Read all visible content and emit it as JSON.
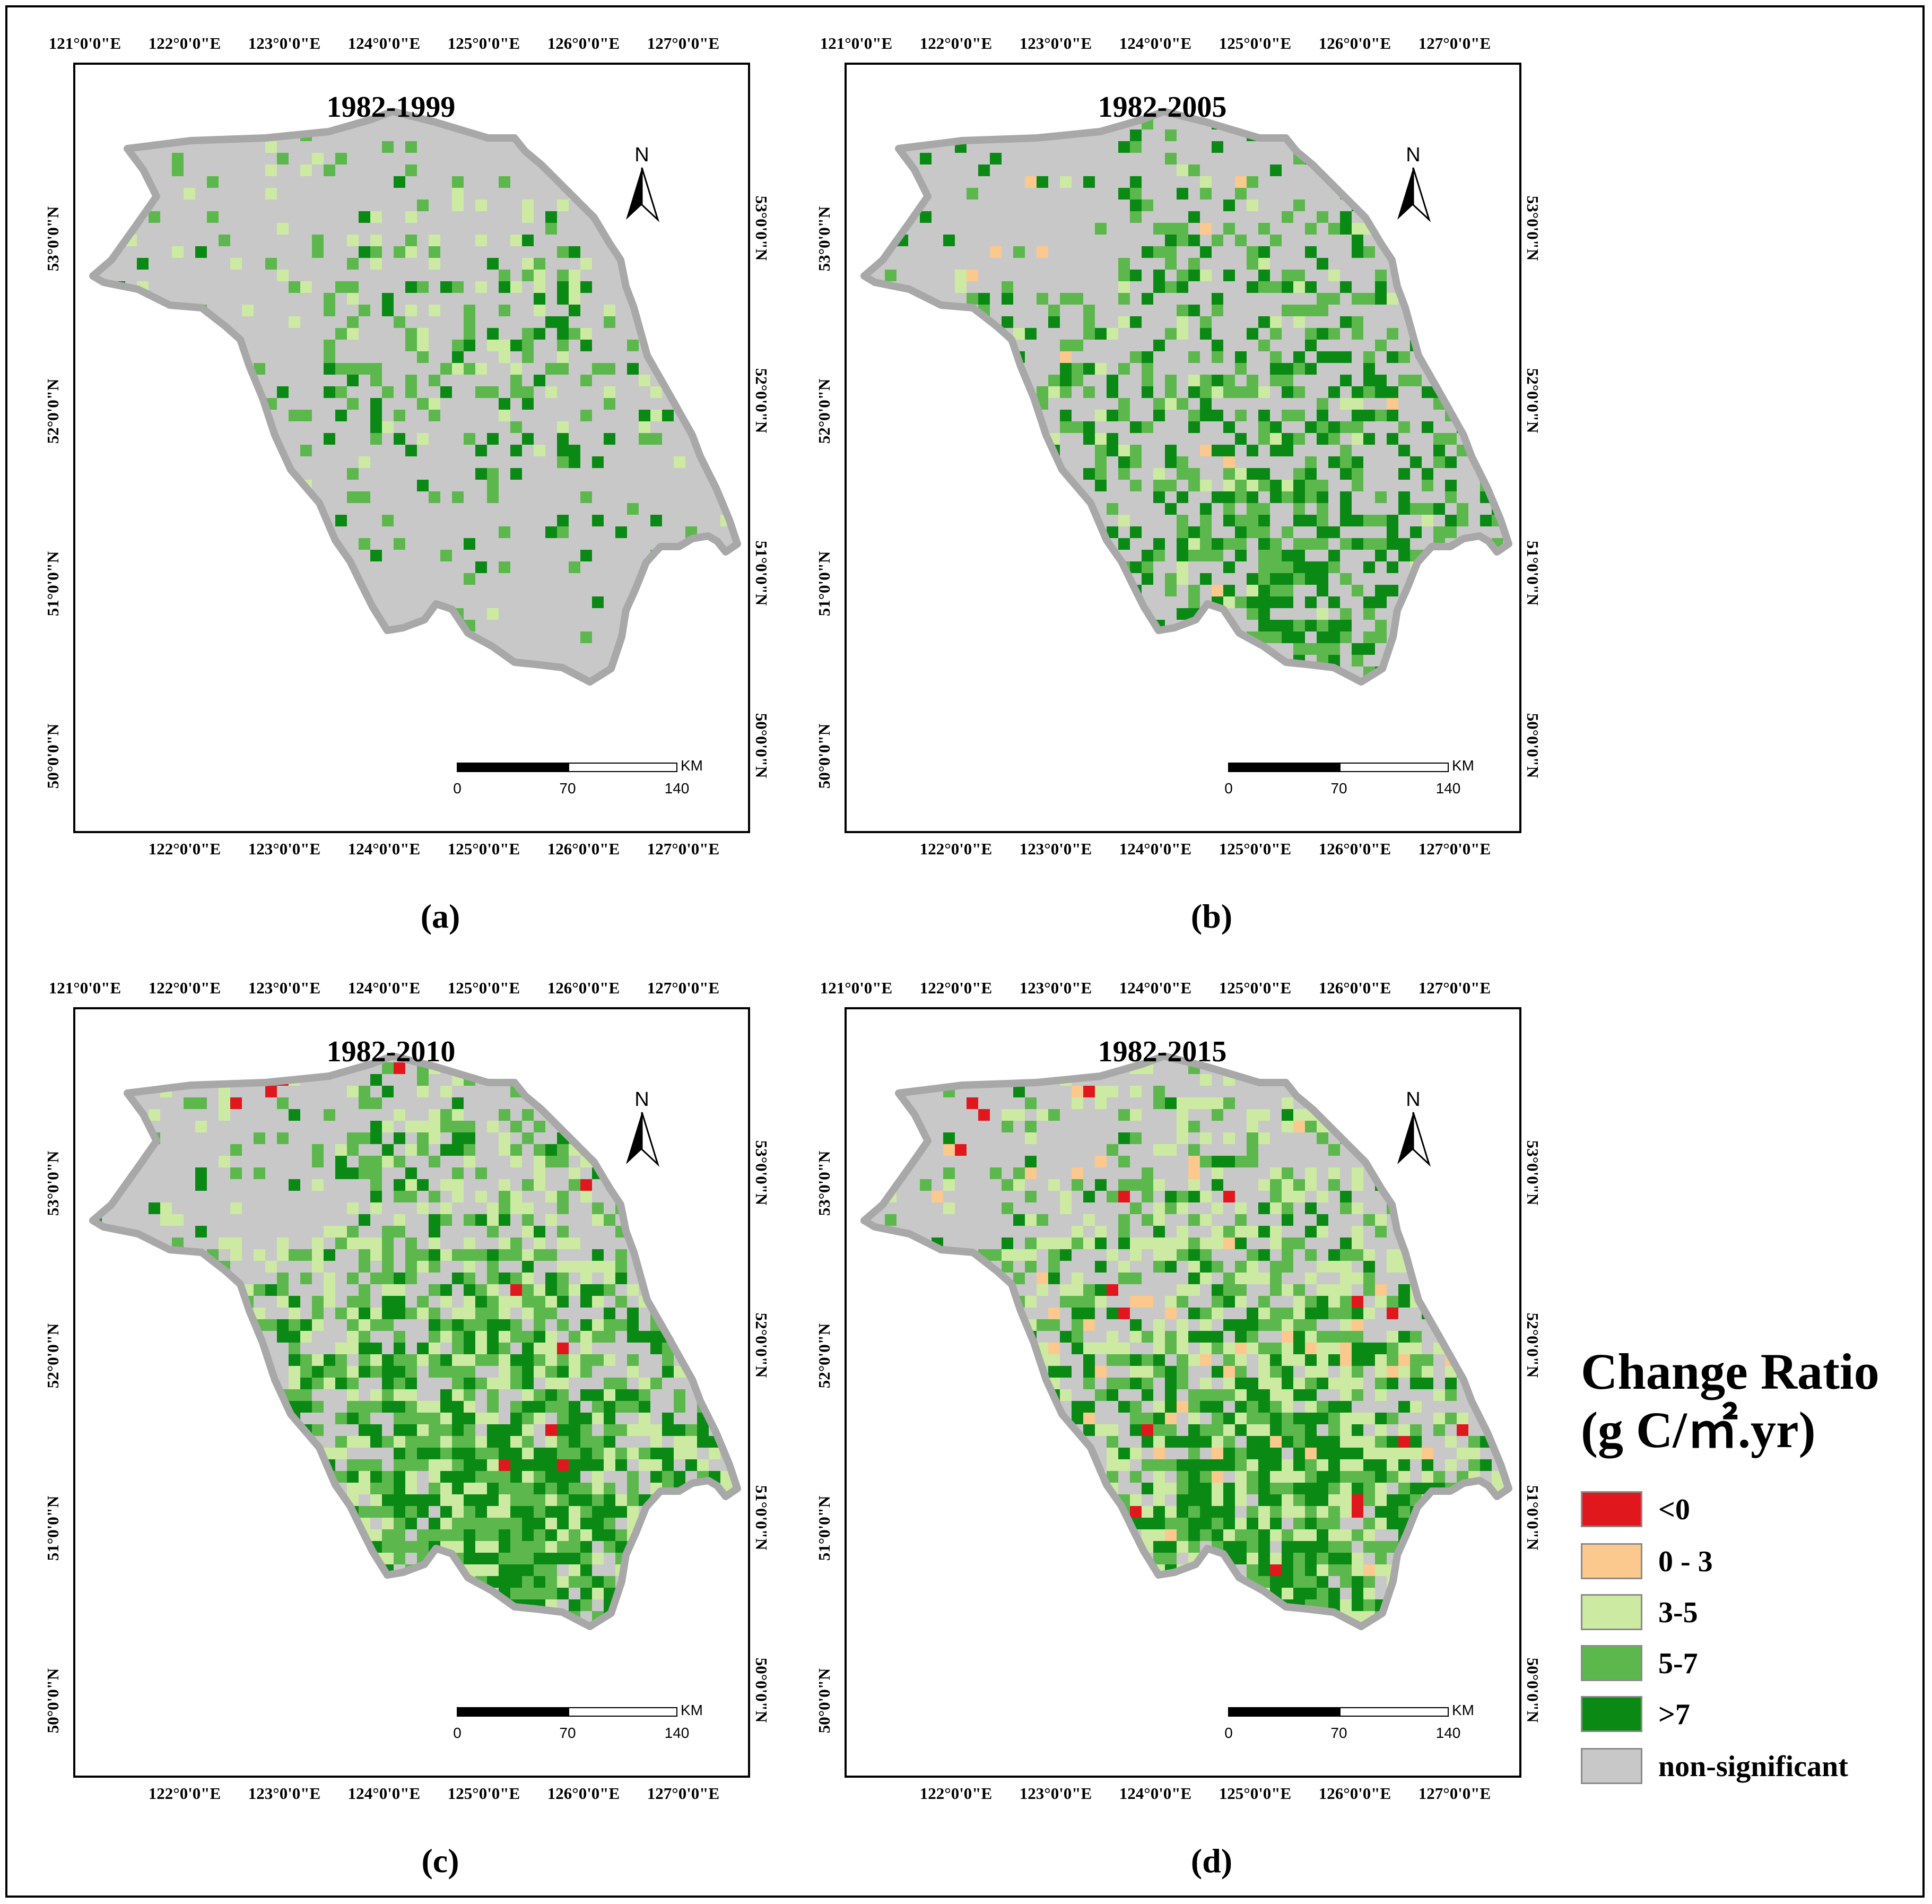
{
  "figure": {
    "panels": [
      {
        "id": "a",
        "title": "1982-1999",
        "label": "(a)",
        "green_strength": 0.1,
        "light_share": 0.3,
        "mid_share": 0.45,
        "north_factor": 0.3,
        "red_rate": 0,
        "orange_rate": 0
      },
      {
        "id": "b",
        "title": "1982-2005",
        "label": "(b)",
        "green_strength": 0.55,
        "light_share": 0.12,
        "mid_share": 0.48,
        "north_factor": 0.35,
        "red_rate": 0,
        "orange_rate": 0.01
      },
      {
        "id": "c",
        "title": "1982-2010",
        "label": "(c)",
        "green_strength": 0.9,
        "light_share": 0.38,
        "mid_share": 0.4,
        "north_factor": 0.45,
        "red_rate": 0.002,
        "orange_rate": 0
      },
      {
        "id": "d",
        "title": "1982-2015",
        "label": "(d)",
        "green_strength": 0.85,
        "light_share": 0.5,
        "mid_share": 0.32,
        "north_factor": 0.45,
        "red_rate": 0.01,
        "orange_rate": 0.03
      }
    ],
    "top_ticks": [
      "121°0'0\"E",
      "122°0'0\"E",
      "123°0'0\"E",
      "124°0'0\"E",
      "125°0'0\"E",
      "126°0'0\"E",
      "127°0'0\"E"
    ],
    "bottom_ticks": [
      "122°0'0\"E",
      "123°0'0\"E",
      "124°0'0\"E",
      "125°0'0\"E",
      "126°0'0\"E",
      "127°0'0\"E"
    ],
    "left_ticks": [
      "53°0'0\"N",
      "52°0'0\"N",
      "51°0'0\"N",
      "50°0'0\"N"
    ],
    "right_ticks": [
      "53°0'0\"N",
      "52°0'0\"N",
      "51°0'0\"N",
      "50°0'0\"N"
    ],
    "north_arrow": "N",
    "scale_bar": {
      "unit": "KM",
      "labels": [
        "0",
        "70",
        "140"
      ]
    },
    "colors": {
      "frame": "#000000",
      "outline": "#a8a8a8",
      "non_significant": "#c8c8c8",
      "red": "#e0181e",
      "orange": "#fbc88e",
      "light_green": "#cdeaa3",
      "mid_green": "#5cb84c",
      "dark_green": "#0a8a14"
    }
  },
  "legend": {
    "title_line1": "Change Ratio",
    "title_line2": "(g C/㎡.yr)",
    "items": [
      {
        "label": "<0",
        "color": "#e0181e"
      },
      {
        "label": "0 - 3",
        "color": "#fbc88e"
      },
      {
        "label": "3-5",
        "color": "#cdeaa3"
      },
      {
        "label": "5-7",
        "color": "#5cb84c"
      },
      {
        "label": ">7",
        "color": "#0a8a14"
      },
      {
        "label": "non-significant",
        "color": "#c8c8c8"
      }
    ]
  }
}
